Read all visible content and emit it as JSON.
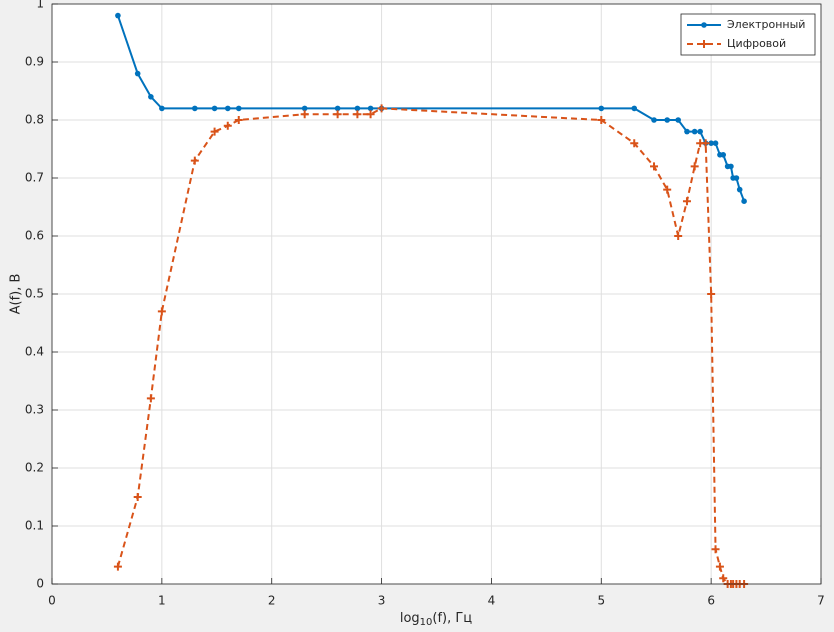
{
  "chart_data": {
    "type": "line",
    "x_label": {
      "base": "log",
      "sub": "10",
      "rest": "(f), Гц"
    },
    "y_label": "A(f), В",
    "xlim": [
      0,
      7
    ],
    "xticks": [
      0,
      1,
      2,
      3,
      4,
      5,
      6,
      7
    ],
    "ylim": [
      0,
      1
    ],
    "yticks": [
      0,
      0.1,
      0.2,
      0.3,
      0.4,
      0.5,
      0.6,
      0.7,
      0.8,
      0.9,
      1
    ],
    "grid": true,
    "legend": "top-right",
    "series": [
      {
        "name": "Электронный",
        "color": "#0072bd",
        "dash": "solid",
        "marker": "dot",
        "x": [
          0.6,
          0.78,
          0.9,
          1,
          1.3,
          1.48,
          1.6,
          1.7,
          2.3,
          2.6,
          2.78,
          2.9,
          3,
          5,
          5.3,
          5.48,
          5.6,
          5.7,
          5.78,
          5.85,
          5.9,
          5.95,
          6,
          6.04,
          6.08,
          6.11,
          6.15,
          6.18,
          6.2,
          6.23,
          6.26,
          6.3
        ],
        "values": [
          0.98,
          0.88,
          0.84,
          0.82,
          0.82,
          0.82,
          0.82,
          0.82,
          0.82,
          0.82,
          0.82,
          0.82,
          0.82,
          0.82,
          0.82,
          0.8,
          0.8,
          0.8,
          0.78,
          0.78,
          0.78,
          0.76,
          0.76,
          0.76,
          0.74,
          0.74,
          0.72,
          0.72,
          0.7,
          0.7,
          0.68,
          0.66
        ]
      },
      {
        "name": "Цифровой",
        "color": "#d95319",
        "dash": "dashed",
        "marker": "plus",
        "x": [
          0.6,
          0.78,
          0.9,
          1,
          1.3,
          1.48,
          1.6,
          1.7,
          2.3,
          2.6,
          2.78,
          2.9,
          3,
          5,
          5.3,
          5.48,
          5.6,
          5.7,
          5.78,
          5.85,
          5.9,
          5.95,
          6,
          6.04,
          6.08,
          6.11,
          6.15,
          6.18,
          6.2,
          6.23,
          6.26,
          6.3
        ],
        "values": [
          0.03,
          0.15,
          0.32,
          0.47,
          0.73,
          0.78,
          0.79,
          0.8,
          0.81,
          0.81,
          0.81,
          0.81,
          0.82,
          0.8,
          0.76,
          0.72,
          0.68,
          0.6,
          0.66,
          0.72,
          0.76,
          0.76,
          0.5,
          0.06,
          0.03,
          0.01,
          0,
          0,
          0,
          0,
          0,
          0
        ]
      }
    ]
  }
}
